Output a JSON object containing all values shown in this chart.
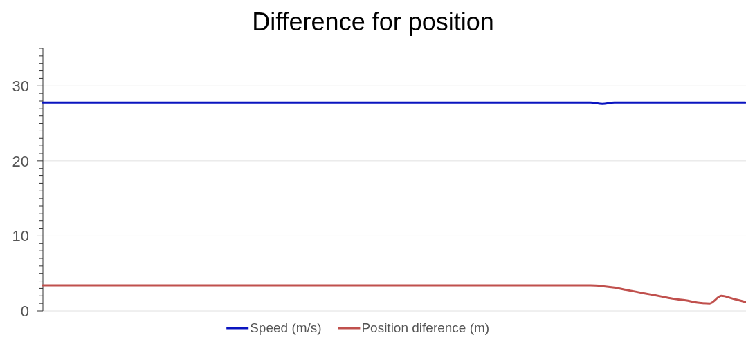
{
  "chart_data": {
    "type": "line",
    "title": "Difference for position",
    "categories": [
      null,
      null,
      null,
      null,
      null,
      null,
      null,
      null,
      null,
      null,
      null,
      null,
      null,
      null,
      null,
      null,
      null,
      null,
      null,
      null,
      null,
      null,
      null,
      null,
      null,
      null,
      null,
      null,
      null,
      null,
      null,
      null,
      null,
      null,
      null,
      null,
      null,
      null,
      null,
      null,
      null,
      null,
      null,
      null,
      null,
      null,
      null,
      null,
      null,
      null,
      null,
      null,
      null,
      null,
      null,
      null,
      null,
      null,
      null,
      null
    ],
    "series": [
      {
        "name": "Speed (m/s)",
        "color": "#0a14c0",
        "values": [
          27.8,
          27.8,
          27.8,
          27.8,
          27.8,
          27.8,
          27.8,
          27.8,
          27.8,
          27.8,
          27.8,
          27.8,
          27.8,
          27.8,
          27.8,
          27.8,
          27.8,
          27.8,
          27.8,
          27.8,
          27.8,
          27.8,
          27.8,
          27.8,
          27.8,
          27.8,
          27.8,
          27.8,
          27.8,
          27.8,
          27.8,
          27.8,
          27.8,
          27.8,
          27.8,
          27.8,
          27.8,
          27.8,
          27.8,
          27.8,
          27.8,
          27.8,
          27.8,
          27.8,
          27.8,
          27.8,
          27.8,
          27.6,
          27.8,
          27.8,
          27.8,
          27.8,
          27.8,
          27.8,
          27.8,
          27.8,
          27.8,
          27.8,
          27.8,
          27.8
        ]
      },
      {
        "name": "Position diference (m)",
        "color": "#c0504d",
        "values": [
          3.4,
          3.4,
          3.4,
          3.4,
          3.4,
          3.4,
          3.4,
          3.4,
          3.4,
          3.4,
          3.4,
          3.4,
          3.4,
          3.4,
          3.4,
          3.4,
          3.4,
          3.4,
          3.4,
          3.4,
          3.4,
          3.4,
          3.4,
          3.4,
          3.4,
          3.4,
          3.4,
          3.4,
          3.4,
          3.4,
          3.4,
          3.4,
          3.4,
          3.4,
          3.4,
          3.4,
          3.4,
          3.4,
          3.4,
          3.4,
          3.4,
          3.4,
          3.4,
          3.4,
          3.4,
          3.4,
          3.4,
          3.3,
          3.1,
          2.8,
          2.5,
          2.2,
          1.9,
          1.6,
          1.4,
          1.1,
          1.0,
          2.0,
          1.6,
          1.2
        ]
      }
    ],
    "ylim": [
      0,
      35
    ],
    "yticks": [
      0,
      {
        "value": 1,
        "label": null
      },
      {
        "value": 2,
        "label": null
      },
      {
        "value": 3,
        "label": null
      },
      {
        "value": 4,
        "label": null
      },
      {
        "value": 5,
        "label": null
      },
      {
        "value": 6,
        "label": null
      },
      {
        "value": 7,
        "label": null
      },
      {
        "value": 8,
        "label": null
      },
      {
        "value": 9,
        "label": null
      },
      10,
      {
        "value": 11,
        "label": null
      },
      {
        "value": 12,
        "label": null
      },
      {
        "value": 13,
        "label": null
      },
      {
        "value": 14,
        "label": null
      },
      {
        "value": 15,
        "label": null
      },
      {
        "value": 16,
        "label": null
      },
      {
        "value": 17,
        "label": null
      },
      {
        "value": 18,
        "label": null
      },
      {
        "value": 19,
        "label": null
      },
      20,
      {
        "value": 21,
        "label": null
      },
      {
        "value": 22,
        "label": null
      },
      {
        "value": 23,
        "label": null
      },
      {
        "value": 24,
        "label": null
      },
      {
        "value": 25,
        "label": null
      },
      {
        "value": 26,
        "label": null
      },
      {
        "value": 27,
        "label": null
      },
      {
        "value": 28,
        "label": null
      },
      {
        "value": 29,
        "label": null
      },
      30,
      {
        "value": 31,
        "label": null
      },
      {
        "value": 32,
        "label": null
      },
      {
        "value": 33,
        "label": null
      },
      {
        "value": 34,
        "label": null
      },
      {
        "value": 35,
        "label": null
      }
    ],
    "grid": "y",
    "legend": "bottom",
    "marker": "none",
    "line_style": "solid"
  }
}
